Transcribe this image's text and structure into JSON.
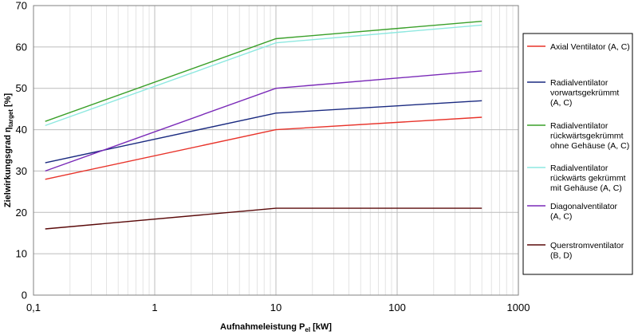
{
  "chart_data": {
    "type": "line",
    "title": "",
    "xlabel": {
      "main": "Aufnahmeleistung P",
      "sub": "el",
      "unit": " [kW]"
    },
    "ylabel": {
      "main": "Zielwirkungsgrad η",
      "sub": "target",
      "unit": " [%]"
    },
    "x_scale": "log",
    "xlim": [
      0.1,
      1000
    ],
    "ylim": [
      0,
      70
    ],
    "x_ticks": [
      0.1,
      1,
      10,
      100,
      1000
    ],
    "x_tick_labels": [
      "0,1",
      "1",
      "10",
      "100",
      "1000"
    ],
    "y_ticks": [
      0,
      10,
      20,
      30,
      40,
      50,
      60,
      70
    ],
    "y_tick_labels": [
      "0",
      "10",
      "20",
      "30",
      "40",
      "50",
      "60",
      "70"
    ],
    "grid": {
      "major": true,
      "minor_x": true
    },
    "legend": {
      "placement": "right"
    },
    "series": [
      {
        "name": [
          "Axial Ventilator (A, C)"
        ],
        "color": "#e8332a",
        "x": [
          0.125,
          10,
          500
        ],
        "y": [
          28,
          40,
          43
        ]
      },
      {
        "name": [
          "Radialventilator",
          "vorwartsgekrümmt",
          "(A, C)"
        ],
        "color": "#1a2a80",
        "x": [
          0.125,
          10,
          500
        ],
        "y": [
          32,
          44,
          47
        ]
      },
      {
        "name": [
          "Radialventilator",
          "rückwärtsgekrümmt",
          "ohne Gehäuse (A, C)"
        ],
        "color": "#3aa02a",
        "x": [
          0.125,
          10,
          500
        ],
        "y": [
          42,
          62,
          66.2
        ]
      },
      {
        "name": [
          "Radialventilator",
          "rückwärts gekrümmt",
          "mit Gehäuse (A, C)"
        ],
        "color": "#8ee8e0",
        "x": [
          0.125,
          10,
          500
        ],
        "y": [
          41,
          61,
          65.3
        ]
      },
      {
        "name": [
          "Diagonalventilator",
          "(A, C)"
        ],
        "color": "#7a2ab8",
        "x": [
          0.125,
          10,
          500
        ],
        "y": [
          30,
          50,
          54.2
        ]
      },
      {
        "name": [
          "Querstromventilator",
          "(B, D)"
        ],
        "color": "#5a0a0a",
        "x": [
          0.125,
          10,
          500
        ],
        "y": [
          16,
          21,
          21
        ]
      }
    ]
  }
}
